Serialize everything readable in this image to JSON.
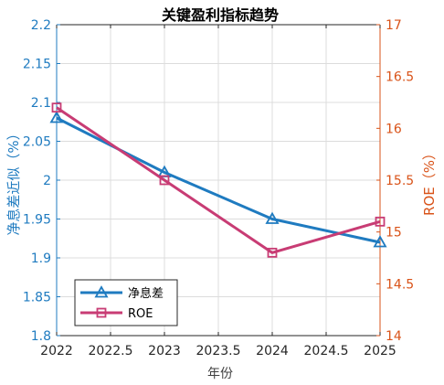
{
  "chart_data": {
    "type": "line",
    "title": "关键盈利指标趋势",
    "xlabel": "年份",
    "x": [
      2022,
      2023,
      2024,
      2025
    ],
    "xlim": [
      2022,
      2025
    ],
    "xticks": [
      2022,
      2022.5,
      2023,
      2023.5,
      2024,
      2024.5,
      2025
    ],
    "grid": true,
    "legend_position": "bottom-left",
    "y_left": {
      "label": "净息差近似（%）",
      "lim": [
        1.8,
        2.2
      ],
      "ticks": [
        1.8,
        1.85,
        1.9,
        1.95,
        2,
        2.05,
        2.1,
        2.15,
        2.2
      ],
      "color": "#1f7bc0"
    },
    "y_right": {
      "label": "ROE（%）",
      "lim": [
        14,
        17
      ],
      "ticks": [
        14,
        14.5,
        15,
        15.5,
        16,
        16.5,
        17
      ],
      "color": "#d95319"
    },
    "series": [
      {
        "name": "净息差",
        "axis": "left",
        "values": [
          2.08,
          2.01,
          1.95,
          1.92
        ],
        "color": "#1f7bc0",
        "marker": "triangle"
      },
      {
        "name": "ROE",
        "axis": "right",
        "values": [
          16.2,
          15.5,
          14.8,
          15.1
        ],
        "color": "#c83c74",
        "marker": "square"
      }
    ]
  }
}
